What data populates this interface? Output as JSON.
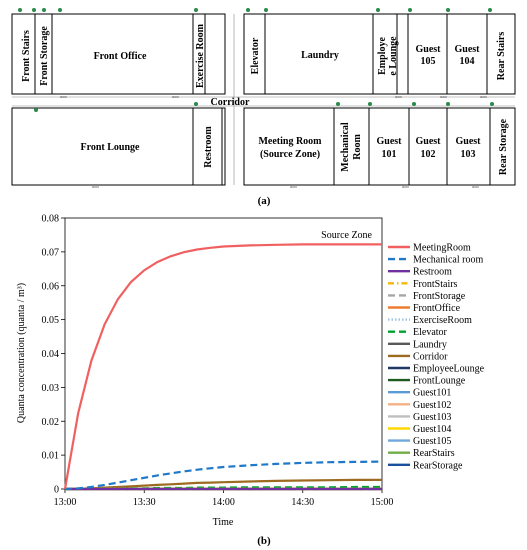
{
  "floorplan": {
    "caption": "(a)",
    "corridor_label": "Corridor",
    "rooms": [
      {
        "id": "front-stairs",
        "label": "Front Stairs",
        "vertical": true
      },
      {
        "id": "front-storage",
        "label": "Front Storage",
        "vertical": true
      },
      {
        "id": "front-office",
        "label": "Front Office",
        "vertical": false
      },
      {
        "id": "exercise-room",
        "label": "Exercise Room",
        "vertical": true
      },
      {
        "id": "elevator",
        "label": "Elevator",
        "vertical": true
      },
      {
        "id": "laundry",
        "label": "Laundry",
        "vertical": false
      },
      {
        "id": "employee-lounge",
        "label_lines": [
          "Employe",
          "e Lounge"
        ],
        "vertical": true
      },
      {
        "id": "guest-105",
        "label_lines": [
          "Guest",
          "105"
        ],
        "vertical": false
      },
      {
        "id": "guest-104",
        "label_lines": [
          "Guest",
          "104"
        ],
        "vertical": false
      },
      {
        "id": "rear-stairs",
        "label": "Rear Stairs",
        "vertical": true
      },
      {
        "id": "front-lounge",
        "label": "Front Lounge",
        "vertical": false
      },
      {
        "id": "restroom",
        "label": "Restroom",
        "vertical": true
      },
      {
        "id": "meeting-room",
        "label_lines": [
          "Meeting Room",
          "(Source Zone)"
        ],
        "vertical": false
      },
      {
        "id": "mechanical-room",
        "label_lines": [
          "Mechanical",
          "Room"
        ],
        "vertical": true
      },
      {
        "id": "guest-101",
        "label_lines": [
          "Guest",
          "101"
        ],
        "vertical": false
      },
      {
        "id": "guest-102",
        "label_lines": [
          "Guest",
          "102"
        ],
        "vertical": false
      },
      {
        "id": "guest-103",
        "label_lines": [
          "Guest",
          "103"
        ],
        "vertical": false
      },
      {
        "id": "rear-storage",
        "label": "Rear Storage",
        "vertical": true
      }
    ]
  },
  "chart_caption": "(b)",
  "chart_data": {
    "type": "line",
    "annotation": "Source Zone",
    "xlabel": "Time",
    "ylabel": "Quanta concentration (quanta / m³)",
    "x_ticks": [
      "13:00",
      "13:30",
      "14:00",
      "14:30",
      "15:00"
    ],
    "y_ticks": [
      "0",
      "0.01",
      "0.02",
      "0.03",
      "0.04",
      "0.05",
      "0.06",
      "0.07",
      "0.08"
    ],
    "xlim_minutes": [
      0,
      120
    ],
    "ylim": [
      0,
      0.08
    ],
    "x": [
      0,
      5,
      10,
      15,
      20,
      25,
      30,
      35,
      40,
      45,
      50,
      55,
      60,
      70,
      80,
      90,
      100,
      110,
      120
    ],
    "grid": false,
    "legend_position": "right",
    "series": [
      {
        "name": "MeetingRoom",
        "color": "#f06060",
        "dash": "solid",
        "values": [
          0,
          0.0224,
          0.0379,
          0.0486,
          0.056,
          0.0611,
          0.0646,
          0.067,
          0.0687,
          0.0699,
          0.0707,
          0.0712,
          0.0716,
          0.0719,
          0.0721,
          0.0722,
          0.0722,
          0.0722,
          0.0722
        ]
      },
      {
        "name": "Mechanical room",
        "color": "#1f78c8",
        "dash": "long",
        "values": [
          0,
          0.0002,
          0.0006,
          0.0012,
          0.0019,
          0.0026,
          0.0033,
          0.004,
          0.0046,
          0.0052,
          0.0057,
          0.0061,
          0.0065,
          0.007,
          0.0074,
          0.0077,
          0.0079,
          0.008,
          0.0081
        ]
      },
      {
        "name": "Restroom",
        "color": "#7030a0",
        "dash": "solid",
        "values": [
          0,
          0,
          0,
          0,
          0,
          0,
          0,
          0,
          0,
          0,
          0,
          0,
          0,
          0,
          0,
          0,
          0,
          0,
          0
        ]
      },
      {
        "name": "FrontStairs",
        "color": "#f5b800",
        "dash": "dashdot",
        "values": [
          0,
          0,
          0,
          0,
          0,
          0,
          0,
          0,
          0,
          0,
          0,
          0,
          0,
          0,
          0,
          0,
          0,
          0,
          0
        ]
      },
      {
        "name": "FrontStorage",
        "color": "#a6a6a6",
        "dash": "long",
        "values": [
          0,
          0,
          0,
          0,
          0,
          0,
          0,
          0,
          0,
          0,
          0,
          0,
          0,
          0,
          0,
          0,
          0,
          0,
          0
        ]
      },
      {
        "name": "FrontOffice",
        "color": "#ed7d31",
        "dash": "solid",
        "values": [
          0,
          0,
          0,
          0,
          0,
          0,
          0,
          0,
          0,
          0,
          0,
          0,
          0,
          0,
          0,
          0,
          0,
          0,
          0
        ]
      },
      {
        "name": "ExerciseRoom",
        "color": "#9dc3e6",
        "dash": "dot",
        "values": [
          0,
          0,
          0,
          0,
          0,
          0,
          0,
          0,
          0,
          0,
          0,
          0,
          0,
          0,
          0,
          0,
          0,
          0,
          0
        ]
      },
      {
        "name": "Elevator",
        "color": "#00a030",
        "dash": "long",
        "values": [
          0,
          0,
          0,
          0.0001,
          0.0001,
          0.0002,
          0.0002,
          0.0003,
          0.0003,
          0.0003,
          0.0004,
          0.0004,
          0.0004,
          0.0005,
          0.0005,
          0.0005,
          0.0005,
          0.0006,
          0.0006
        ]
      },
      {
        "name": "Laundry",
        "color": "#595959",
        "dash": "solid",
        "values": [
          0,
          0,
          0,
          0,
          0,
          0,
          0,
          0,
          0,
          0,
          0,
          0,
          0,
          0,
          0,
          0,
          0,
          0,
          0
        ]
      },
      {
        "name": "Corridor",
        "color": "#9c6b1f",
        "dash": "solid",
        "values": [
          0,
          0.0001,
          0.0002,
          0.0004,
          0.0006,
          0.0008,
          0.001,
          0.0012,
          0.0014,
          0.0016,
          0.0018,
          0.0019,
          0.002,
          0.0022,
          0.0024,
          0.0025,
          0.0026,
          0.0027,
          0.0027
        ]
      },
      {
        "name": "EmployeeLounge",
        "color": "#1f3864",
        "dash": "solid",
        "values": [
          0,
          0,
          0,
          0,
          0,
          0,
          0,
          0,
          0,
          0,
          0,
          0,
          0,
          0,
          0,
          0,
          0,
          0,
          0
        ]
      },
      {
        "name": "FrontLounge",
        "color": "#1e5b1e",
        "dash": "solid",
        "values": [
          0,
          0,
          0,
          0,
          0,
          0,
          0,
          0,
          0,
          0,
          0,
          0,
          0,
          0,
          0,
          0,
          0,
          0,
          0
        ]
      },
      {
        "name": "Guest101",
        "color": "#5b9bd5",
        "dash": "solid",
        "values": [
          0,
          0,
          0,
          0,
          0,
          0,
          0,
          0,
          0,
          0,
          0,
          0,
          0,
          0,
          0,
          0,
          0,
          0,
          0
        ]
      },
      {
        "name": "Guest102",
        "color": "#f4b183",
        "dash": "solid",
        "values": [
          0,
          0,
          0,
          0,
          0,
          0,
          0,
          0,
          0,
          0,
          0,
          0,
          0,
          0,
          0,
          0,
          0,
          0,
          0
        ]
      },
      {
        "name": "Guest103",
        "color": "#bfbfbf",
        "dash": "solid",
        "values": [
          0,
          0,
          0,
          0,
          0,
          0,
          0,
          0,
          0,
          0,
          0,
          0,
          0,
          0,
          0,
          0,
          0,
          0,
          0
        ]
      },
      {
        "name": "Guest104",
        "color": "#ffd700",
        "dash": "solid",
        "values": [
          0,
          0,
          0,
          0,
          0,
          0,
          0,
          0,
          0,
          0,
          0,
          0,
          0,
          0,
          0,
          0,
          0,
          0,
          0
        ]
      },
      {
        "name": "Guest105",
        "color": "#6fa8dc",
        "dash": "solid",
        "values": [
          0,
          0,
          0,
          0,
          0,
          0,
          0,
          0,
          0,
          0,
          0,
          0,
          0,
          0,
          0,
          0,
          0,
          0,
          0
        ]
      },
      {
        "name": "RearStairs",
        "color": "#70ad47",
        "dash": "solid",
        "values": [
          0,
          0,
          0,
          0,
          0,
          0,
          0,
          0,
          0,
          0,
          0,
          0,
          0,
          0,
          0,
          0,
          0,
          0,
          0
        ]
      },
      {
        "name": "RearStorage",
        "color": "#1a4f9c",
        "dash": "solid",
        "values": [
          0,
          0,
          0,
          0,
          0,
          0,
          0,
          0,
          0,
          0,
          0,
          0,
          0,
          0,
          0,
          0,
          0,
          0,
          0
        ]
      }
    ]
  }
}
